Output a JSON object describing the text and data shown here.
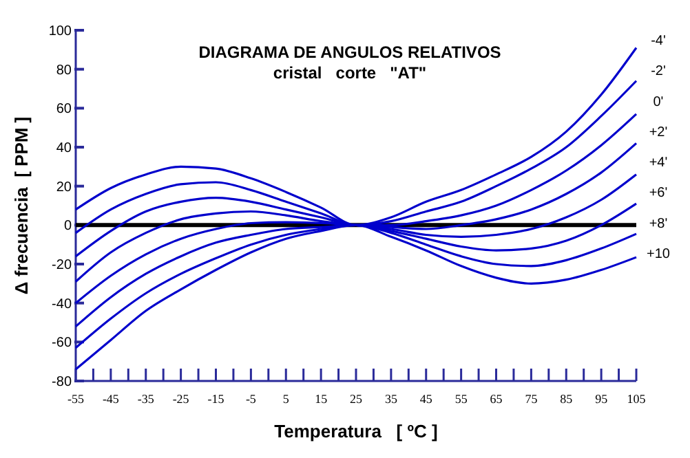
{
  "chart_data": {
    "type": "line",
    "title": "DIAGRAMA DE ANGULOS RELATIVOS",
    "subtitle": "cristal   corte   \"AT\"",
    "xlabel": "Temperatura   [ ºC ]",
    "ylabel": "Δ frecuencia  [ PPM ]",
    "x": [
      -55,
      -45,
      -35,
      -25,
      -15,
      -5,
      5,
      15,
      25,
      35,
      45,
      55,
      65,
      75,
      85,
      95,
      105
    ],
    "series": [
      {
        "name": "-4'",
        "color": "#0000cc",
        "values": [
          8,
          19,
          26,
          30,
          29,
          24,
          17,
          9,
          0,
          4,
          12,
          18,
          26,
          35,
          48,
          67,
          91
        ]
      },
      {
        "name": "-2'",
        "color": "#0000cc",
        "values": [
          -4,
          8,
          16,
          21,
          22,
          18,
          12,
          6,
          0,
          2,
          7,
          12,
          20,
          29,
          40,
          56,
          74
        ]
      },
      {
        "name": "0'",
        "color": "#0000cc",
        "values": [
          -16,
          -3,
          7,
          12,
          14,
          12,
          8,
          4,
          0,
          0,
          2,
          5,
          10,
          18,
          28,
          41,
          57
        ]
      },
      {
        "name": "+2'",
        "color": "#0000cc",
        "values": [
          -29,
          -14,
          -4,
          3,
          6,
          7,
          5,
          2,
          0,
          -1,
          -2,
          0,
          3,
          8,
          16,
          27,
          42
        ]
      },
      {
        "name": "+4'",
        "color": "#0000cc",
        "values": [
          -40,
          -26,
          -15,
          -7,
          -2,
          1,
          1.5,
          1,
          0,
          -2,
          -5,
          -6,
          -5,
          -2,
          4,
          13,
          26
        ]
      },
      {
        "name": "+6'",
        "color": "#0000cc",
        "values": [
          -52,
          -37,
          -25,
          -16,
          -9,
          -5,
          -2,
          -1,
          0,
          -3,
          -7,
          -11,
          -13,
          -12,
          -8,
          0,
          11
        ]
      },
      {
        "name": "+8'",
        "color": "#0000cc",
        "values": [
          -63,
          -48,
          -35,
          -25,
          -17,
          -10,
          -5,
          -2,
          0,
          -4,
          -10,
          -16,
          -20,
          -21,
          -18,
          -12,
          -4.5
        ]
      },
      {
        "name": "+10",
        "color": "#0000cc",
        "values": [
          -74,
          -59,
          -44,
          -33,
          -23,
          -14,
          -7,
          -3,
          0,
          -6,
          -13,
          -21,
          -27,
          -30,
          -28,
          -23,
          -16.5
        ]
      }
    ],
    "xlim": [
      -55,
      105
    ],
    "xticks": [
      -55,
      {
        "value": -50,
        "label": null
      },
      -45,
      {
        "value": -40,
        "label": null
      },
      -35,
      {
        "value": -30,
        "label": null
      },
      -25,
      {
        "value": -20,
        "label": null
      },
      -15,
      {
        "value": -10,
        "label": null
      },
      -5,
      {
        "value": 0,
        "label": null
      },
      5,
      {
        "value": 10,
        "label": null
      },
      15,
      {
        "value": 20,
        "label": null
      },
      25,
      {
        "value": 30,
        "label": null
      },
      35,
      {
        "value": 40,
        "label": null
      },
      45,
      {
        "value": 50,
        "label": null
      },
      55,
      {
        "value": 60,
        "label": null
      },
      65,
      {
        "value": 70,
        "label": null
      },
      75,
      {
        "value": 80,
        "label": null
      },
      85,
      {
        "value": 90,
        "label": null
      },
      95,
      {
        "value": 100,
        "label": null
      },
      105
    ],
    "ylim": [
      -80,
      100
    ],
    "yticks": [
      -80,
      -60,
      -40,
      -20,
      0,
      20,
      40,
      60,
      80,
      100
    ],
    "ref_lines": [
      {
        "axis": "y",
        "value": 0,
        "color": "#000000"
      }
    ],
    "grid": false,
    "legend": "right",
    "marker": "none",
    "line_style": "solid"
  }
}
